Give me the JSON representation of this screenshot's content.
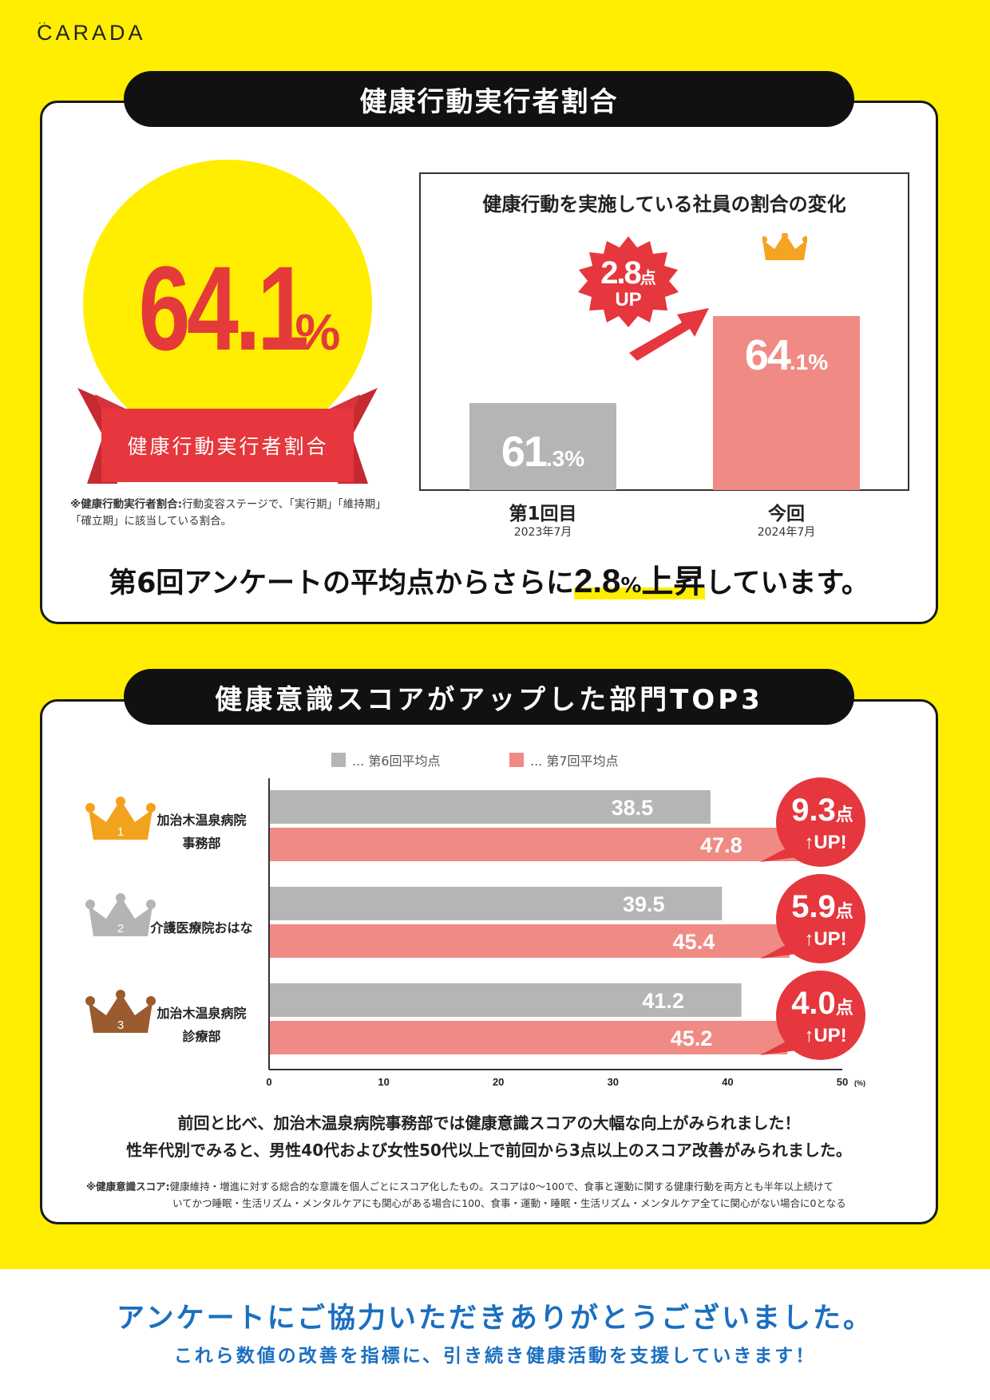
{
  "logo": "CARADA",
  "section1": {
    "title": "健康行動実行者割合",
    "big_value": "64.1",
    "big_unit": "%",
    "ribbon_label": "健康行動実行者割合",
    "note_term": "※健康行動実行者割合:",
    "note_body": "行動変容ステージで、「実行期」「維持期」「確立期」に該当している割合。",
    "headline_pre": "第6回アンケートの平均点からさらに",
    "headline_num": "2.8",
    "headline_unit": "%",
    "headline_word": "上昇",
    "headline_post": "しています。"
  },
  "chart1": {
    "badge_value": "2.8",
    "badge_unit": "点",
    "badge_up": "UP",
    "colors": {
      "previous": "#b5b5b5",
      "current": "#ef8b84",
      "accent": "#e5373d",
      "crown": "#f4a323"
    }
  },
  "section2": {
    "title": "健康意識スコアがアップした部門TOP3",
    "legend": [
      "... 第6回平均点",
      "... 第7回平均点"
    ],
    "depts": [
      {
        "rank": "1",
        "line1": "加治木温泉病院",
        "line2": "事務部",
        "crown_color": "#f3a21e"
      },
      {
        "rank": "2",
        "line1": "介護医療院おはな",
        "line2": "",
        "crown_color": "#b4b4b4"
      },
      {
        "rank": "3",
        "line1": "加治木温泉病院",
        "line2": "診療部",
        "crown_color": "#9a5b2e"
      }
    ],
    "bubbles": [
      {
        "value": "9.3",
        "unit": "点",
        "up": "UP!"
      },
      {
        "value": "5.9",
        "unit": "点",
        "up": "UP!"
      },
      {
        "value": "4.0",
        "unit": "点",
        "up": "UP!"
      }
    ],
    "summary1": "前回と比べ、加治木温泉病院事務部では健康意識スコアの大幅な向上がみられました！",
    "summary2": "性年代別でみると、男性40代および女性50代以上で前回から3点以上のスコア改善がみられました。",
    "note_term": "※健康意識スコア:",
    "note_line1": "健康維持・増進に対する総合的な意識を個人ごとにスコア化したもの。スコアは0〜100で、食事と運動に関する健康行動を両方とも半年以上続けて",
    "note_line2": "いてかつ睡眠・生活リズム・メンタルケアにも関心がある場合に100、食事・運動・睡眠・生活リズム・メンタルケア全てに関心がない場合に0となる"
  },
  "footer": {
    "thanks": "アンケートにご協力いただきありがとうございました。",
    "sub": "これら数値の改善を指標に、引き続き健康活動を支援していきます！"
  },
  "chart_data": [
    {
      "type": "bar",
      "title": "健康行動を実施している社員の割合の変化",
      "categories": [
        "第1回目",
        "今回"
      ],
      "category_dates": [
        "2023年7月",
        "2024年7月"
      ],
      "values": [
        61.3,
        64.1
      ],
      "value_labels": [
        {
          "n": "61",
          "s": ".3%"
        },
        {
          "n": "64",
          "s": ".1%"
        }
      ],
      "unit": "%",
      "ylim": [
        58.5,
        65.8
      ]
    },
    {
      "type": "bar",
      "orientation": "horizontal",
      "categories": [
        "加治木温泉病院 事務部",
        "介護医療院おはな",
        "加治木温泉病院 診療部"
      ],
      "series": [
        {
          "name": "第6回平均点",
          "values": [
            38.5,
            39.5,
            41.2
          ],
          "color": "#b5b5b5"
        },
        {
          "name": "第7回平均点",
          "values": [
            47.8,
            45.4,
            45.2
          ],
          "color": "#ef8b84"
        }
      ],
      "xticks": [
        "0",
        "10",
        "20",
        "30",
        "40",
        "50"
      ],
      "xlim": [
        0,
        50
      ],
      "xunit": "(%)"
    }
  ]
}
